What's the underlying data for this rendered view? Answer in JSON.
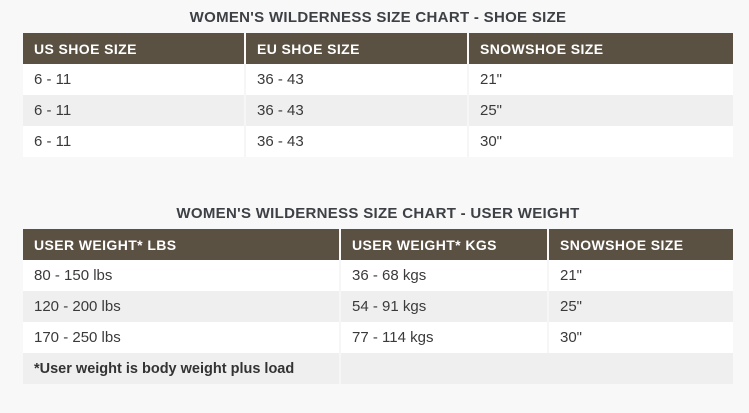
{
  "colors": {
    "page_background": "#f8f8f8",
    "header_background": "#5a5143",
    "header_text": "#ffffff",
    "row_alt_background": "#efefef",
    "body_text": "#3a3a3a",
    "title_text": "#3d4045"
  },
  "tables": [
    {
      "title": "WOMEN'S WILDERNESS SIZE CHART - SHOE SIZE",
      "columns": [
        "US SHOE SIZE",
        "EU SHOE SIZE",
        "SNOWSHOE SIZE"
      ],
      "rows": [
        [
          "6 - 11",
          "36 - 43",
          "21\""
        ],
        [
          "6 - 11",
          "36 - 43",
          "25\""
        ],
        [
          "6 - 11",
          "36 - 43",
          "30\""
        ]
      ]
    },
    {
      "title": "WOMEN'S WILDERNESS SIZE CHART - USER WEIGHT",
      "columns": [
        "USER WEIGHT* LBS",
        "USER WEIGHT* KGS",
        "SNOWSHOE SIZE"
      ],
      "rows": [
        [
          "80 - 150 lbs",
          "36 - 68 kgs",
          "21\""
        ],
        [
          "120 - 200 lbs",
          "54 - 91 kgs",
          "25\""
        ],
        [
          "170 - 250 lbs",
          "77 - 114 kgs",
          "30\""
        ]
      ],
      "footnote": "*User weight is body weight plus load"
    }
  ]
}
